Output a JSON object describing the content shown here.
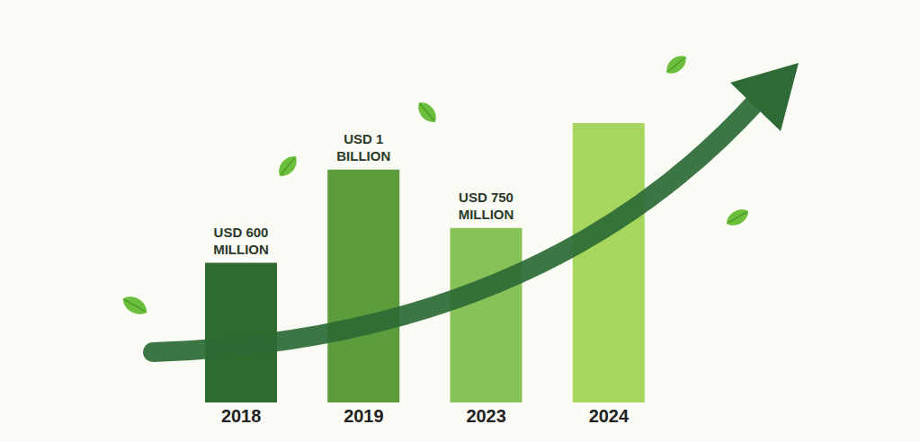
{
  "chart_data": {
    "type": "bar",
    "categories": [
      "2018",
      "2019",
      "2023",
      "2024"
    ],
    "values": [
      600,
      1000,
      750,
      1200
    ],
    "value_labels": [
      "USD 600 MILLION",
      "USD 1 BILLION",
      "USD 750 MILLION",
      null
    ],
    "colors": [
      "#2f6b2f",
      "#5c9c3c",
      "#86c257",
      "#a6d65e"
    ],
    "data_labels": true,
    "tick_labels": "x",
    "grid": false
  }
}
